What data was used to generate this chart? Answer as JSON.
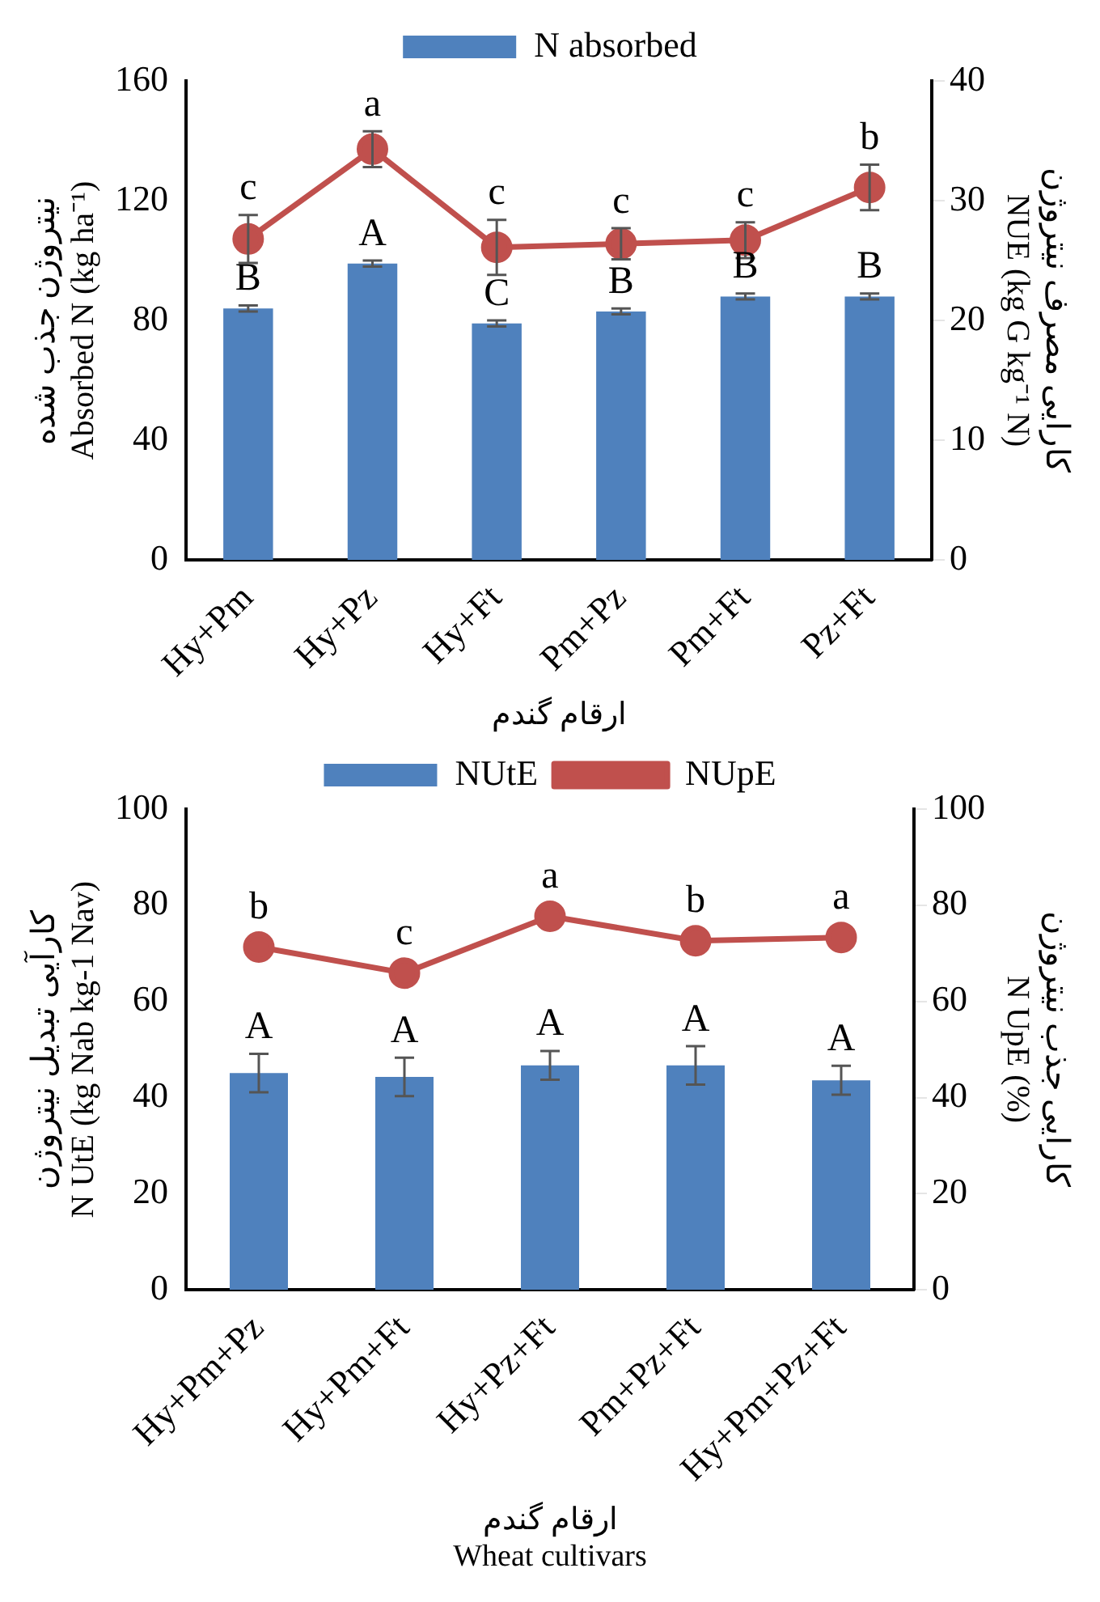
{
  "chart_data": [
    {
      "type": "bar",
      "categories": [
        "Hy+Pm",
        "Hy+Pz",
        "Hy+Ft",
        "Pm+Pz",
        "Pm+Ft",
        "Pz+Ft"
      ],
      "xlabel": "ارقام گندم",
      "ylabel": "نیتروژن جذب شده\nAbsorbed N (kg ha⁻¹)",
      "y2label": "کارایی مصرف نیتروژن\nNUE (kg G kg⁻¹ N)",
      "ylim": [
        0,
        160
      ],
      "yticks": [
        0,
        40,
        80,
        120,
        160
      ],
      "y2lim": [
        0,
        40
      ],
      "y2ticks": [
        0,
        10,
        20,
        30,
        40
      ],
      "grid": false,
      "legend": "top",
      "marker": "circle",
      "series": [
        {
          "name": "N absorbed",
          "color": "#4f81bd",
          "values": [
            84,
            99,
            79,
            83,
            88,
            88
          ],
          "errors": [
            1,
            1,
            1,
            1,
            1,
            1
          ],
          "value_labels": [
            "B",
            "A",
            "C",
            "B",
            "B",
            "B"
          ]
        },
        {
          "type": "line",
          "axis": "y2",
          "color": "#c0504d",
          "values": [
            26.8,
            34.3,
            26.1,
            26.4,
            26.7,
            31.1
          ],
          "errors": [
            2,
            1.5,
            2.3,
            1.3,
            1.5,
            1.9
          ],
          "value_labels": [
            "c",
            "a",
            "c",
            "c",
            "c",
            "b"
          ]
        }
      ]
    },
    {
      "type": "bar",
      "categories": [
        "Hy+Pm+Pz",
        "Hy+Pm+Ft",
        "Hy+Pz+Ft",
        "Pm+Pz+Ft",
        "Hy+Pm+Pz+Ft"
      ],
      "xlabel": "ارقام گندم\nWheat cultivars",
      "ylabel": "کارآیی تبدیل نیتروژن\nN UtE (kg Nab kg-1 Nav)",
      "y2label": "کارایی جذب نیتروژن\nN UpE (%)",
      "ylim": [
        0,
        100
      ],
      "yticks": [
        0,
        20,
        40,
        60,
        80,
        100
      ],
      "y2lim": [
        0,
        100
      ],
      "y2ticks": [
        0,
        20,
        40,
        60,
        80,
        100
      ],
      "grid": false,
      "legend": "top",
      "marker": "circle",
      "series": [
        {
          "name": "NUtE",
          "color": "#4f81bd",
          "values": [
            45.1,
            44.3,
            46.7,
            46.7,
            43.6
          ],
          "errors": [
            4,
            4,
            3,
            4,
            3
          ],
          "value_labels": [
            "A",
            "A",
            "A",
            "A",
            "A"
          ]
        },
        {
          "name": "NUpE",
          "type": "line",
          "axis": "y2",
          "color": "#c0504d",
          "values": [
            71.3,
            65.9,
            77.7,
            72.6,
            73.3
          ],
          "value_labels": [
            "b",
            "c",
            "a",
            "b",
            "a"
          ]
        }
      ]
    }
  ]
}
